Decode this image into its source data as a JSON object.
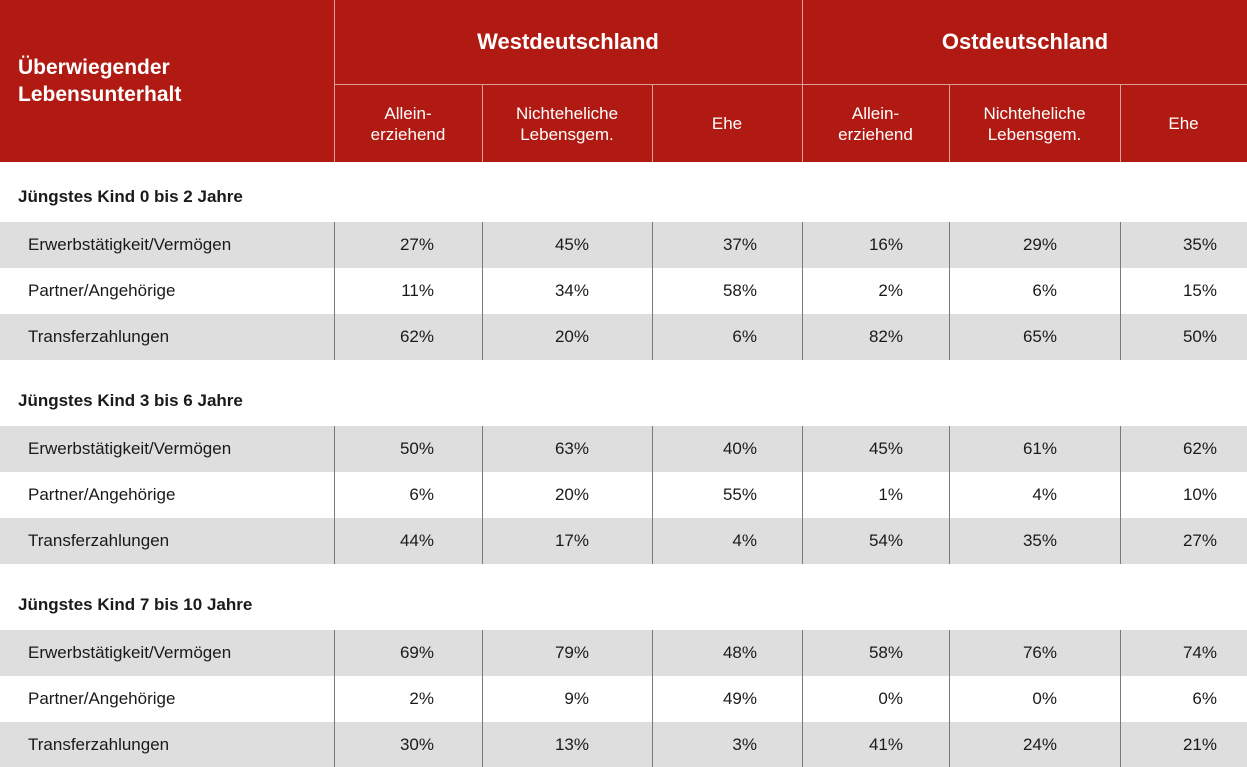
{
  "header": {
    "corner_line1": "Überwiegender",
    "corner_line2": "Lebensunterhalt",
    "groups": [
      "Westdeutschland",
      "Ostdeutschland"
    ],
    "subcols": [
      {
        "line1": "Allein-",
        "line2": "erziehend"
      },
      {
        "line1": "Nichteheliche",
        "line2": "Lebensgem."
      },
      {
        "line1": "Ehe",
        "line2": ""
      },
      {
        "line1": "Allein-",
        "line2": "erziehend"
      },
      {
        "line1": "Nichteheliche",
        "line2": "Lebensgem."
      },
      {
        "line1": "Ehe",
        "line2": ""
      }
    ]
  },
  "sections": [
    {
      "title": "Jüngstes Kind 0 bis 2 Jahre",
      "rows": [
        {
          "label": "Erwerbstätigkeit/Vermögen",
          "values": [
            "27%",
            "45%",
            "37%",
            "16%",
            "29%",
            "35%"
          ]
        },
        {
          "label": "Partner/Angehörige",
          "values": [
            "11%",
            "34%",
            "58%",
            "2%",
            "6%",
            "15%"
          ]
        },
        {
          "label": "Transferzahlungen",
          "values": [
            "62%",
            "20%",
            "6%",
            "82%",
            "65%",
            "50%"
          ]
        }
      ]
    },
    {
      "title": "Jüngstes Kind 3 bis 6 Jahre",
      "rows": [
        {
          "label": "Erwerbstätigkeit/Vermögen",
          "values": [
            "50%",
            "63%",
            "40%",
            "45%",
            "61%",
            "62%"
          ]
        },
        {
          "label": "Partner/Angehörige",
          "values": [
            "6%",
            "20%",
            "55%",
            "1%",
            "4%",
            "10%"
          ]
        },
        {
          "label": "Transferzahlungen",
          "values": [
            "44%",
            "17%",
            "4%",
            "54%",
            "35%",
            "27%"
          ]
        }
      ]
    },
    {
      "title": "Jüngstes Kind 7 bis 10 Jahre",
      "rows": [
        {
          "label": "Erwerbstätigkeit/Vermögen",
          "values": [
            "69%",
            "79%",
            "48%",
            "58%",
            "76%",
            "74%"
          ]
        },
        {
          "label": "Partner/Angehörige",
          "values": [
            "2%",
            "9%",
            "49%",
            "0%",
            "0%",
            "6%"
          ]
        },
        {
          "label": "Transferzahlungen",
          "values": [
            "30%",
            "13%",
            "3%",
            "41%",
            "24%",
            "21%"
          ]
        }
      ]
    }
  ],
  "colors": {
    "header_bg": "#b01a12",
    "row_shade": "#dedede"
  }
}
